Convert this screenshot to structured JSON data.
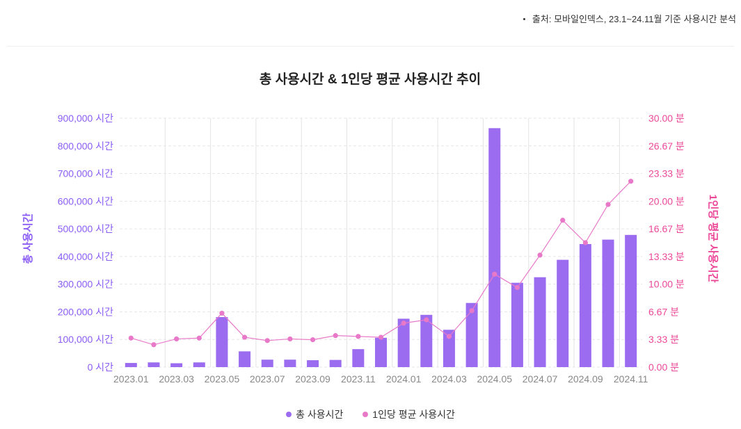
{
  "source_note": "출처: 모바일인덱스, 23.1~24.11월 기준 사용시간 분석",
  "colors": {
    "bar": "#9b6cf0",
    "line": "#e879c9",
    "left_axis": "#8b5cf6",
    "right_axis": "#ec4899"
  },
  "chart_data": {
    "type": "bar",
    "title": "총 사용시간 & 1인당 평균 사용시간 추이",
    "categories": [
      "2023.01",
      "2023.02",
      "2023.03",
      "2023.04",
      "2023.05",
      "2023.06",
      "2023.07",
      "2023.08",
      "2023.09",
      "2023.10",
      "2023.11",
      "2023.12",
      "2024.01",
      "2024.02",
      "2024.03",
      "2024.04",
      "2024.05",
      "2024.06",
      "2024.07",
      "2024.08",
      "2024.09",
      "2024.10",
      "2024.11"
    ],
    "x_tick_labels": [
      "2023.01",
      "2023.03",
      "2023.05",
      "2023.07",
      "2023.09",
      "2023.11",
      "2024.01",
      "2024.03",
      "2024.05",
      "2024.07",
      "2024.09",
      "2024.11"
    ],
    "series": [
      {
        "name": "총 사용시간",
        "type": "bar",
        "axis": "left",
        "values": [
          15000,
          17000,
          14000,
          17000,
          181000,
          57000,
          27000,
          27000,
          25000,
          26000,
          65000,
          106000,
          175000,
          189000,
          135000,
          232000,
          864000,
          305000,
          325000,
          388000,
          445000,
          461000,
          478000
        ]
      },
      {
        "name": "1인당 평균 사용시간",
        "type": "line",
        "axis": "right",
        "values": [
          3.5,
          2.7,
          3.4,
          3.5,
          6.5,
          3.6,
          3.2,
          3.4,
          3.3,
          3.8,
          3.7,
          3.6,
          5.3,
          5.7,
          3.7,
          6.8,
          11.2,
          9.6,
          13.5,
          17.7,
          15.0,
          19.6,
          22.4
        ]
      }
    ],
    "y_left": {
      "label": "총 사용시간",
      "ylim": [
        0,
        900000
      ],
      "unit": "시간",
      "tick_labels": [
        "0 시간",
        "100,000 시간",
        "200,000 시간",
        "300,000 시간",
        "400,000 시간",
        "500,000 시간",
        "600,000 시간",
        "700,000 시간",
        "800,000 시간",
        "900,000 시간"
      ]
    },
    "y_right": {
      "label": "1인당 평균 사용시간",
      "ylim": [
        0,
        30
      ],
      "unit": "분",
      "tick_labels": [
        "0.00 분",
        "3.33 분",
        "6.67 분",
        "10.00 분",
        "13.33 분",
        "16.67 분",
        "20.00 분",
        "23.33 분",
        "26.67 분",
        "30.00 분"
      ]
    },
    "grid": true,
    "legend_position": "bottom-center"
  }
}
